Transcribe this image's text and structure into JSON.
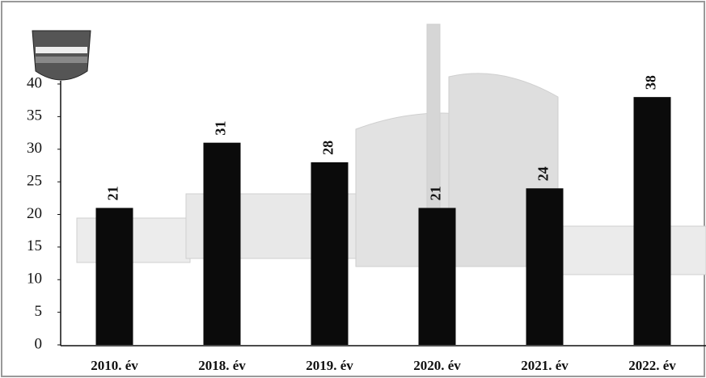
{
  "chart_data": {
    "type": "bar",
    "categories": [
      "2010. év",
      "2018. év",
      "2019. év",
      "2020. év",
      "2021. év",
      "2022. év"
    ],
    "values": [
      21,
      31,
      28,
      21,
      24,
      38
    ],
    "color": "#0b0b0b",
    "ylim": [
      0,
      40
    ],
    "yticks": [
      0,
      5,
      10,
      15,
      20,
      25,
      30,
      35,
      40
    ],
    "grid": false
  }
}
